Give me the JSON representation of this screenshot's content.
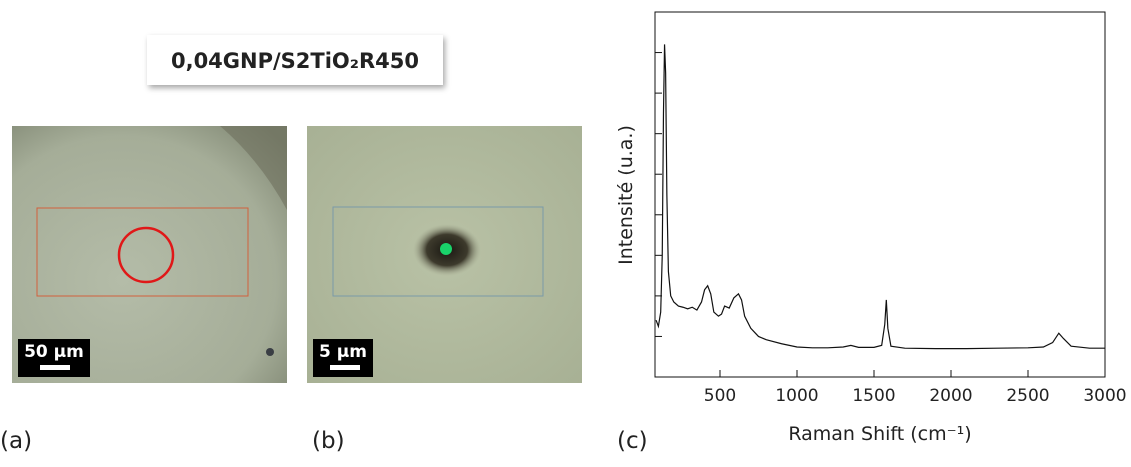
{
  "sample_title": "0,04GNP/S2TiO₂R450",
  "panels": {
    "a": {
      "label": "(a)",
      "scale_bar": "50 µm"
    },
    "b": {
      "label": "(b)",
      "scale_bar": "5 µm"
    },
    "c": {
      "label": "(c)"
    }
  },
  "chart_data": {
    "type": "line",
    "x_label": "Raman Shift (cm⁻¹)",
    "y_label": "Intensité (u.a.)",
    "color": "#111111",
    "x": [
      85,
      100,
      115,
      125,
      133,
      140,
      147,
      155,
      165,
      180,
      200,
      230,
      260,
      290,
      320,
      350,
      380,
      400,
      420,
      440,
      460,
      490,
      510,
      530,
      560,
      590,
      620,
      640,
      660,
      700,
      750,
      800,
      900,
      1000,
      1100,
      1200,
      1300,
      1350,
      1400,
      1500,
      1550,
      1570,
      1580,
      1590,
      1610,
      1700,
      1900,
      2100,
      2300,
      2500,
      2600,
      2660,
      2700,
      2730,
      2780,
      2900,
      3000
    ],
    "values": [
      1.4,
      1.25,
      1.6,
      3.0,
      6.5,
      8.2,
      7.5,
      4.5,
      2.6,
      2.0,
      1.85,
      1.75,
      1.72,
      1.68,
      1.72,
      1.65,
      1.85,
      2.15,
      2.25,
      2.05,
      1.6,
      1.5,
      1.55,
      1.75,
      1.7,
      1.95,
      2.05,
      1.9,
      1.5,
      1.2,
      1.0,
      0.92,
      0.82,
      0.74,
      0.72,
      0.72,
      0.74,
      0.78,
      0.73,
      0.73,
      0.78,
      1.3,
      1.9,
      1.2,
      0.76,
      0.71,
      0.7,
      0.7,
      0.71,
      0.72,
      0.74,
      0.85,
      1.08,
      0.95,
      0.76,
      0.71,
      0.71
    ],
    "xlim": [
      78,
      3000
    ],
    "xticks": [
      500,
      1000,
      1500,
      2000,
      2500,
      3000
    ],
    "ylim": [
      0,
      9
    ],
    "yticks": [
      1,
      2,
      3,
      4,
      5,
      6,
      7,
      8
    ],
    "ytick_labels": false
  }
}
